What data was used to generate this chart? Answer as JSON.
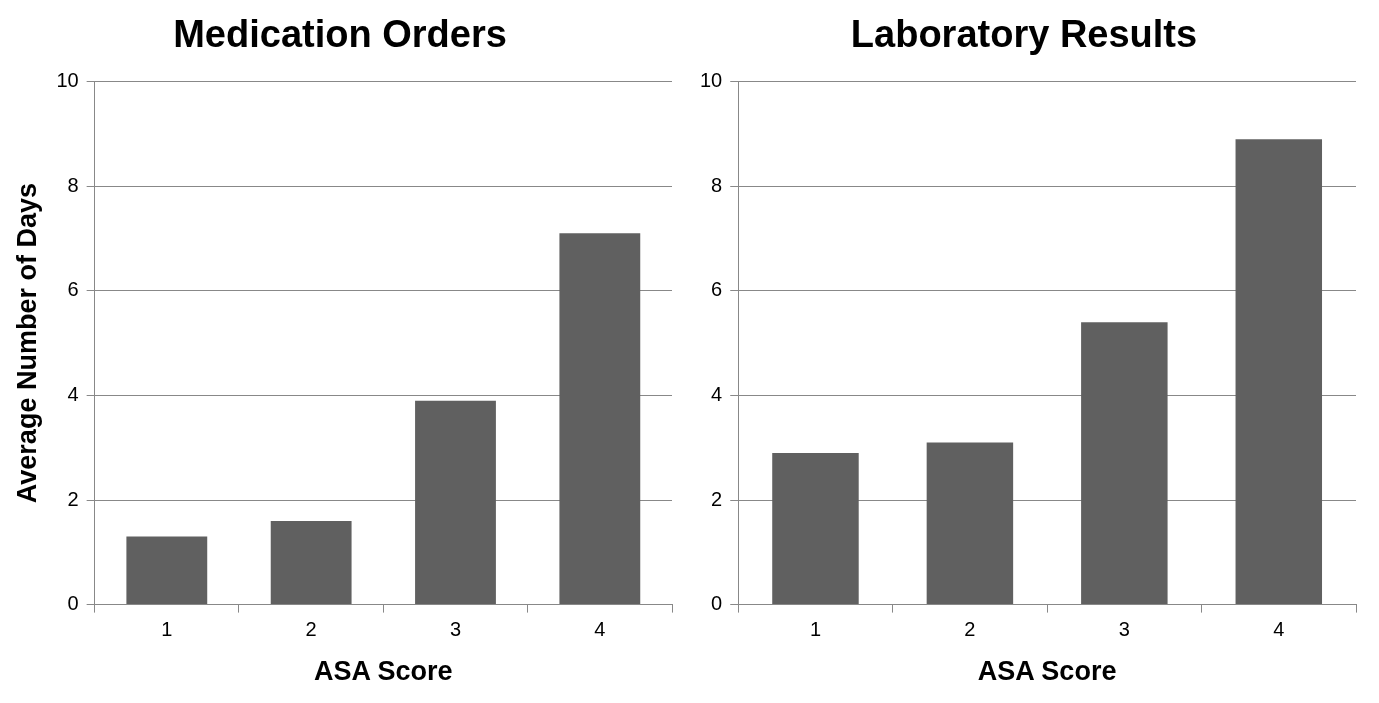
{
  "chart_data": [
    {
      "type": "bar",
      "title": "Medication Orders",
      "xlabel": "ASA Score",
      "ylabel": "Average Number of Days",
      "categories": [
        "1",
        "2",
        "3",
        "4"
      ],
      "values": [
        1.3,
        1.6,
        3.9,
        7.1
      ],
      "color": "#606060",
      "ylim": [
        0,
        10
      ],
      "yticks": [
        0,
        2,
        4,
        6,
        8,
        10
      ],
      "grid": "y"
    },
    {
      "type": "bar",
      "title": "Laboratory Results",
      "xlabel": "ASA Score",
      "categories": [
        "1",
        "2",
        "3",
        "4"
      ],
      "values": [
        2.9,
        3.1,
        5.4,
        8.9
      ],
      "color": "#606060",
      "ylim": [
        0,
        10
      ],
      "yticks": [
        0,
        2,
        4,
        6,
        8,
        10
      ],
      "grid": "y"
    }
  ]
}
